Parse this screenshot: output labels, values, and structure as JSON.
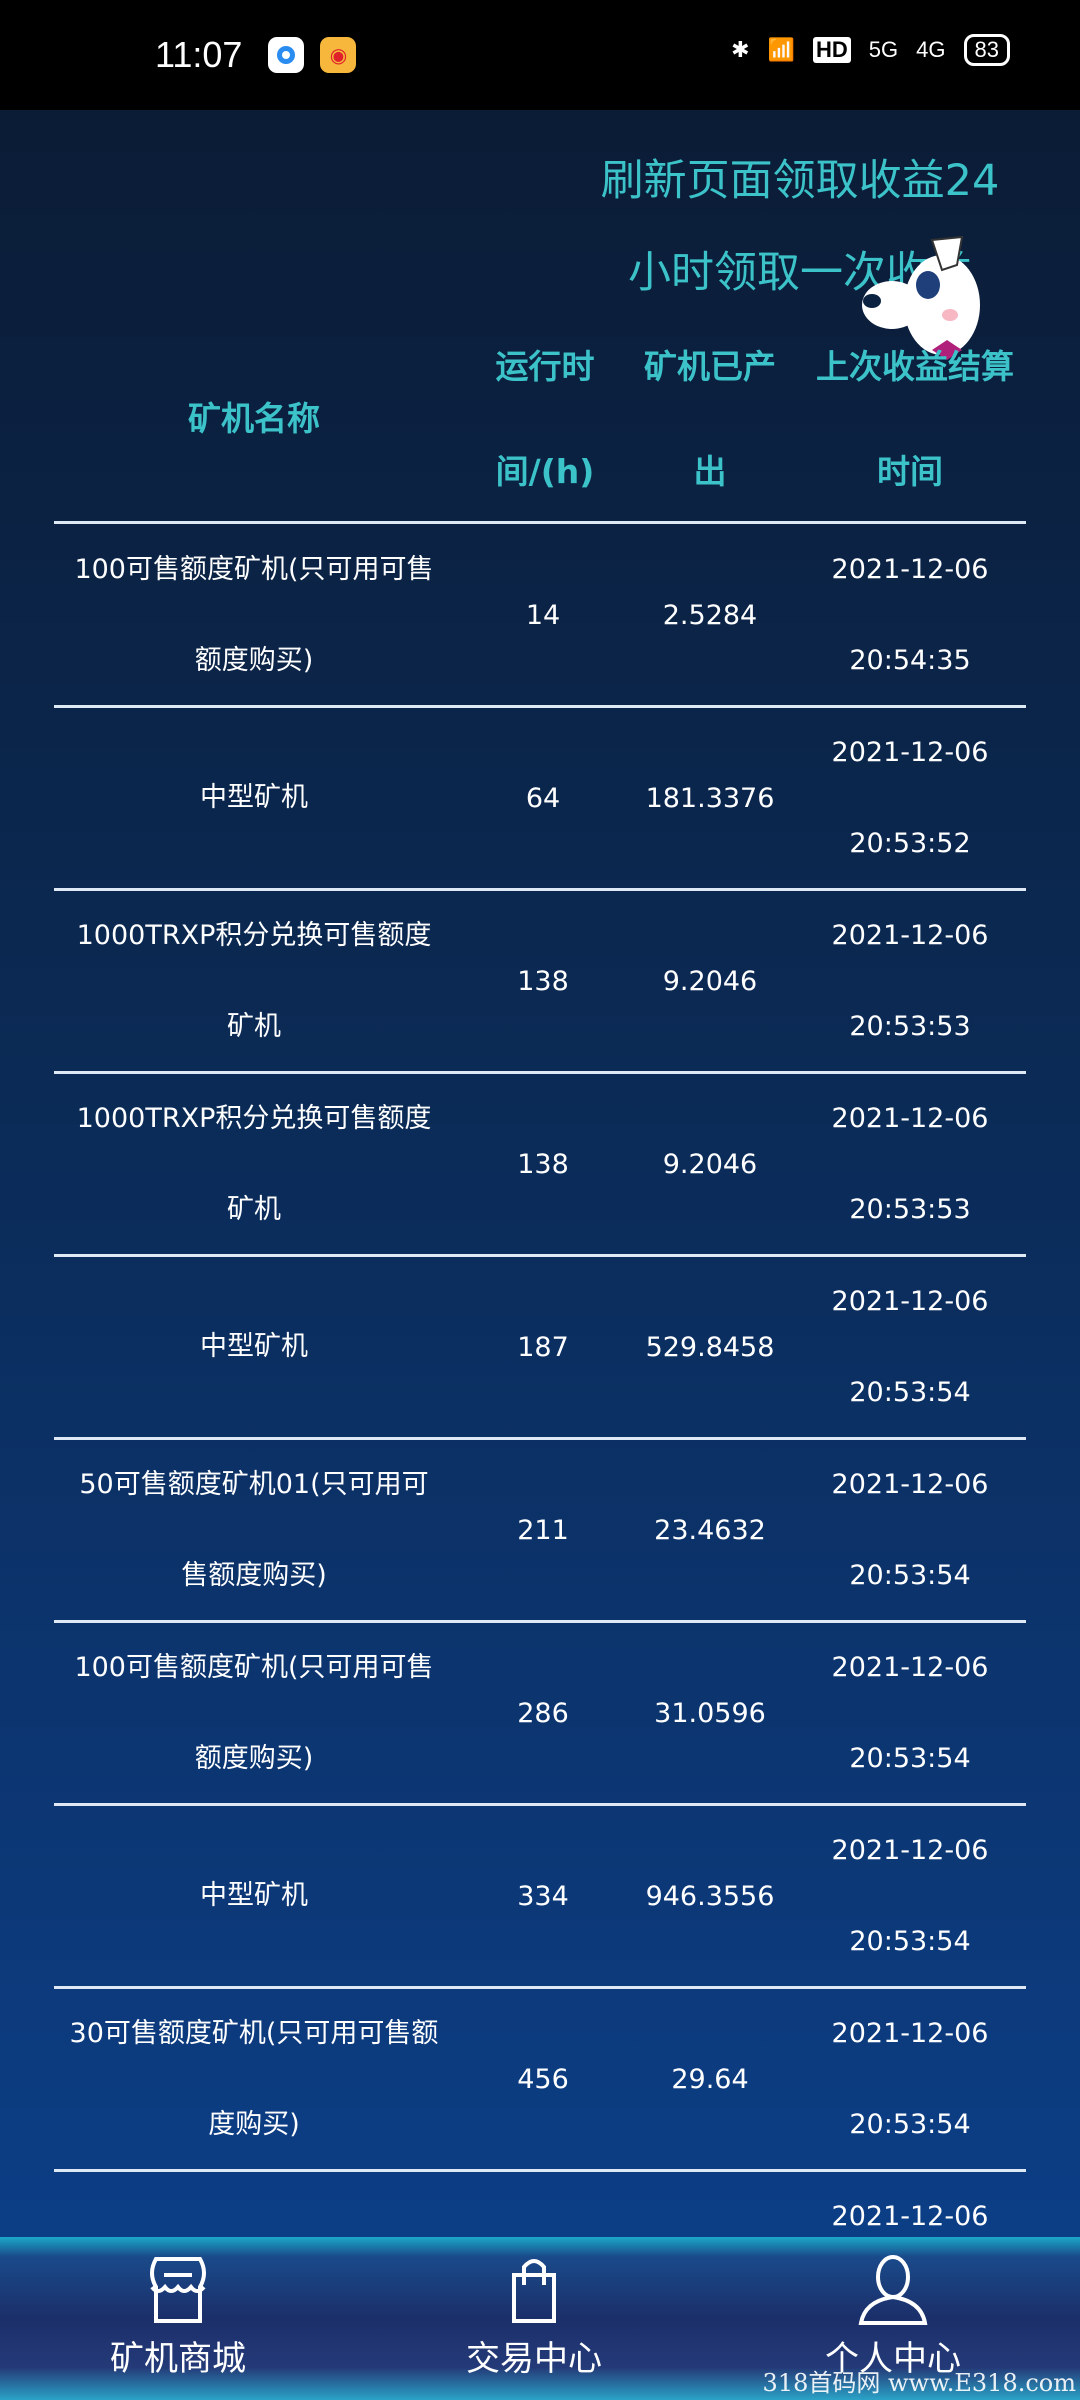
{
  "status_bar": {
    "time": "11:07",
    "battery": "83",
    "network": [
      "5G",
      "4G"
    ],
    "hd": "HD"
  },
  "notice": {
    "line1": "刷新页面领取收益24",
    "line2": "小时领取一次收益"
  },
  "table": {
    "headers": {
      "name": "矿机名称",
      "runtime_l1": "运行时",
      "runtime_l2": "间/(h)",
      "output_l1": "矿机已产",
      "output_l2": "出",
      "time_l1": "上次收益结算",
      "time_l2": "时间"
    },
    "rows": [
      {
        "name_l1": "100可售额度矿机(只可用可售",
        "name_l2": "额度购买)",
        "runtime": "14",
        "output": "2.5284",
        "date": "2021-12-06",
        "time": "20:54:35"
      },
      {
        "name_l1": "",
        "name_l2": "中型矿机",
        "runtime": "64",
        "output": "181.3376",
        "date": "2021-12-06",
        "time": "20:53:52"
      },
      {
        "name_l1": "1000TRXP积分兑换可售额度",
        "name_l2": "矿机",
        "runtime": "138",
        "output": "9.2046",
        "date": "2021-12-06",
        "time": "20:53:53"
      },
      {
        "name_l1": "1000TRXP积分兑换可售额度",
        "name_l2": "矿机",
        "runtime": "138",
        "output": "9.2046",
        "date": "2021-12-06",
        "time": "20:53:53"
      },
      {
        "name_l1": "",
        "name_l2": "中型矿机",
        "runtime": "187",
        "output": "529.8458",
        "date": "2021-12-06",
        "time": "20:53:54"
      },
      {
        "name_l1": "50可售额度矿机01(只可用可",
        "name_l2": "售额度购买)",
        "runtime": "211",
        "output": "23.4632",
        "date": "2021-12-06",
        "time": "20:53:54"
      },
      {
        "name_l1": "100可售额度矿机(只可用可售",
        "name_l2": "额度购买)",
        "runtime": "286",
        "output": "31.0596",
        "date": "2021-12-06",
        "time": "20:53:54"
      },
      {
        "name_l1": "",
        "name_l2": "中型矿机",
        "runtime": "334",
        "output": "946.3556",
        "date": "2021-12-06",
        "time": "20:53:54"
      },
      {
        "name_l1": "30可售额度矿机(只可用可售额",
        "name_l2": "度购买)",
        "runtime": "456",
        "output": "29.64",
        "date": "2021-12-06",
        "time": "20:53:54"
      },
      {
        "name_l1": "",
        "name_l2": "",
        "runtime": "",
        "output": "",
        "date": "2021-12-06",
        "time": ""
      }
    ]
  },
  "nav": [
    {
      "label": "矿机商城",
      "icon": "store-icon"
    },
    {
      "label": "交易中心",
      "icon": "shopping-bag-icon"
    },
    {
      "label": "个人中心",
      "icon": "user-icon"
    }
  ],
  "watermark": "318首码网 www.E318.com",
  "colors": {
    "accent": "#3cc3c9",
    "background_top": "#0b1c36",
    "background_bottom": "#0c3e86"
  }
}
